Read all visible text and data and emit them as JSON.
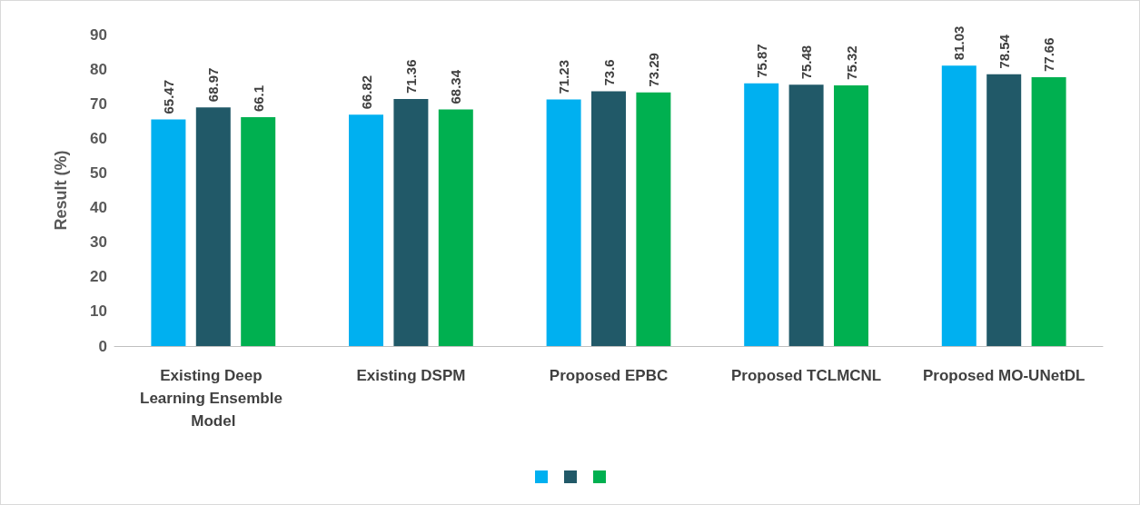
{
  "chart_data": {
    "type": "bar",
    "ylabel": "Result (%)",
    "categories": [
      "Existing Deep Learning Ensemble Model",
      "Existing DSPM",
      "Proposed EPBC",
      "Proposed TCLMCNL",
      "Proposed MO-UNetDL"
    ],
    "series": [
      {
        "color": "#00b0f0",
        "values": [
          65.47,
          66.82,
          71.23,
          75.87,
          81.03
        ]
      },
      {
        "color": "#215968",
        "values": [
          68.97,
          71.36,
          73.6,
          75.48,
          78.54
        ]
      },
      {
        "color": "#00b050",
        "values": [
          66.1,
          68.34,
          73.29,
          75.32,
          77.66
        ]
      }
    ],
    "ylim": [
      0,
      90
    ],
    "yticks": [
      0,
      10,
      20,
      30,
      40,
      50,
      60,
      70,
      80,
      90
    ],
    "grid": false,
    "data_labels": true
  }
}
